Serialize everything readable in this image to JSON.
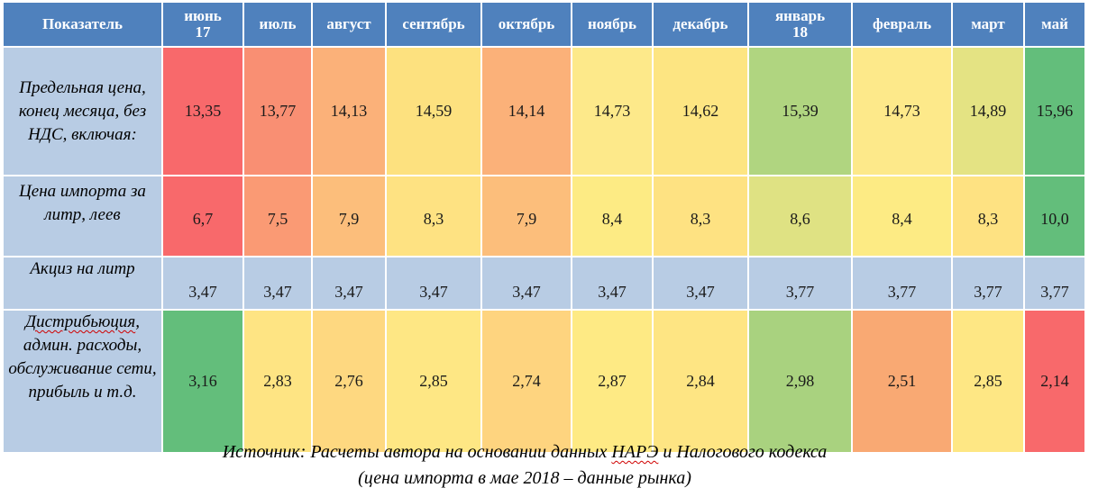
{
  "table": {
    "header": {
      "label": "Показатель",
      "months": [
        "июнь\n17",
        "июль",
        "август",
        "сентябрь",
        "октябрь",
        "ноябрь",
        "декабрь",
        "январь\n18",
        "февраль",
        "март",
        "май"
      ]
    },
    "rows": [
      {
        "label": "Предельная цена, конец месяца, без НДС, включая:",
        "values": [
          "13,35",
          "13,77",
          "14,13",
          "14,59",
          "14,14",
          "14,73",
          "14,62",
          "15,39",
          "14,73",
          "14,89",
          "15,96"
        ],
        "colors": [
          "#f8696b",
          "#f98f73",
          "#fbb179",
          "#fde17f",
          "#fbb179",
          "#fde98a",
          "#fde582",
          "#b0d580",
          "#fde98a",
          "#e4e383",
          "#63be7b"
        ]
      },
      {
        "label": "Цена импорта за литр, леев",
        "values": [
          "6,7",
          "7,5",
          "7,9",
          "8,3",
          "7,9",
          "8,4",
          "8,3",
          "8,6",
          "8,4",
          "8,3",
          "10,0"
        ],
        "colors": [
          "#f8696b",
          "#fa9a74",
          "#fcbe7b",
          "#fee282",
          "#fcbe7b",
          "#fdeb84",
          "#fee282",
          "#dfe283",
          "#fdeb84",
          "#fee282",
          "#63be7b"
        ]
      },
      {
        "label": "Акциз на литр",
        "values": [
          "3,47",
          "3,47",
          "3,47",
          "3,47",
          "3,47",
          "3,47",
          "3,47",
          "3,77",
          "3,77",
          "3,77",
          "3,77"
        ],
        "colors": [
          "#b8cce4",
          "#b8cce4",
          "#b8cce4",
          "#b8cce4",
          "#b8cce4",
          "#b8cce4",
          "#b8cce4",
          "#b8cce4",
          "#b8cce4",
          "#b8cce4",
          "#b8cce4"
        ]
      },
      {
        "label_word1": "Дистрибьюция",
        "label_rest": ", админ. расходы, обслуживание сети, прибыль и т.д.",
        "values": [
          "3,16",
          "2,83",
          "2,76",
          "2,85",
          "2,74",
          "2,87",
          "2,84",
          "2,98",
          "2,51",
          "2,85",
          "2,14"
        ],
        "colors": [
          "#63be7b",
          "#fee483",
          "#fed880",
          "#fee784",
          "#fed47f",
          "#feea84",
          "#fee583",
          "#a9d27f",
          "#f9a973",
          "#fee784",
          "#f8696b"
        ]
      }
    ]
  },
  "source": {
    "line1_pre": "Источник: Расчеты автора на основании данных ",
    "line1_abbr": "НАРЭ",
    "line1_post": " и Налогового кодекса",
    "line2": "(цена импорта в мае 2018 – данные рынка)"
  }
}
